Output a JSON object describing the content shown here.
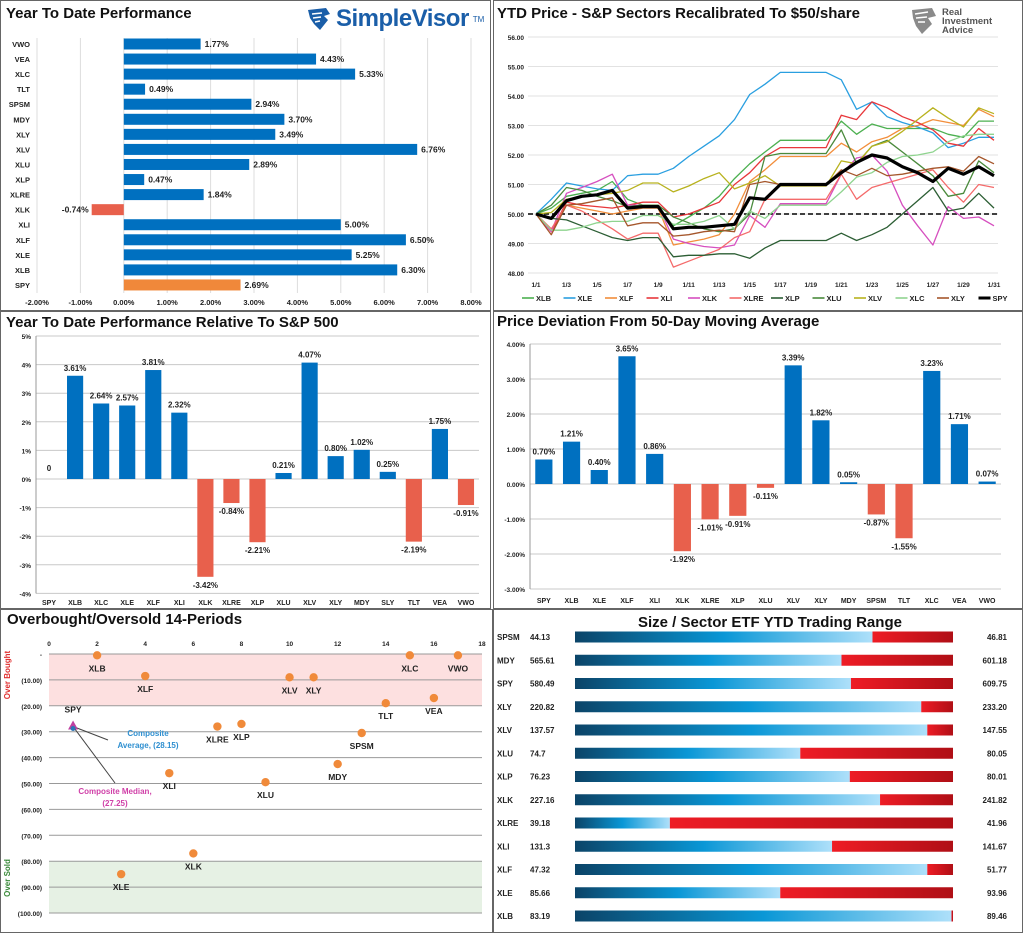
{
  "colors": {
    "positive": "#0070c0",
    "negative": "#e8604c",
    "benchmark": "#f0883a",
    "dot": "#f08a3a",
    "overbought_band": "#fde0e0",
    "oversold_band": "#e6f1e4"
  },
  "logos": {
    "simplevisor": "SimpleVisor",
    "simplevisor_tm": "TM",
    "ria": [
      "Real",
      "Investment",
      "Advice"
    ]
  },
  "chart_data": [
    {
      "id": "ytd",
      "type": "bar",
      "orientation": "horizontal",
      "title": "Year To Date Performance",
      "categories": [
        "VWO",
        "VEA",
        "XLC",
        "TLT",
        "SPSM",
        "MDY",
        "XLY",
        "XLV",
        "XLU",
        "XLP",
        "XLRE",
        "XLK",
        "XLI",
        "XLF",
        "XLE",
        "XLB",
        "SPY"
      ],
      "values": [
        1.77,
        4.43,
        5.33,
        0.49,
        2.94,
        3.7,
        3.49,
        6.76,
        2.89,
        0.47,
        1.84,
        -0.74,
        5.0,
        6.5,
        5.25,
        6.3,
        2.69
      ],
      "highlight": "SPY",
      "xlim": [
        -2,
        8
      ],
      "xticks": [
        "-2.00%",
        "-1.00%",
        "0.00%",
        "1.00%",
        "2.00%",
        "3.00%",
        "4.00%",
        "5.00%",
        "6.00%",
        "7.00%",
        "8.00%"
      ],
      "grid": "vertical"
    },
    {
      "id": "recal",
      "type": "line",
      "title": "YTD Price - S&P Sectors Recalibrated To $50/share",
      "x": [
        "1/1",
        "1/2",
        "1/3",
        "1/4",
        "1/5",
        "1/6",
        "1/7",
        "1/8",
        "1/9",
        "1/10",
        "1/11",
        "1/12",
        "1/13",
        "1/14",
        "1/15",
        "1/16",
        "1/17",
        "1/18",
        "1/19",
        "1/20",
        "1/21",
        "1/22",
        "1/23",
        "1/24",
        "1/25",
        "1/26",
        "1/27",
        "1/28",
        "1/29",
        "1/30",
        "1/31"
      ],
      "xticks": [
        "1/1",
        "1/3",
        "1/5",
        "1/7",
        "1/9",
        "1/11",
        "1/13",
        "1/15",
        "1/17",
        "1/19",
        "1/21",
        "1/23",
        "1/25",
        "1/27",
        "1/29",
        "1/31"
      ],
      "ylim": [
        48,
        56
      ],
      "yticks": [
        "48.00",
        "49.00",
        "50.00",
        "51.00",
        "52.00",
        "53.00",
        "54.00",
        "55.00",
        "56.00"
      ],
      "reference_line": 50,
      "legend": "bottom",
      "series": [
        {
          "name": "XLB",
          "color": "#4cb050",
          "values": [
            50,
            50.2,
            50.6,
            50.7,
            50.8,
            51.1,
            50.5,
            50.3,
            50.2,
            49.6,
            49.9,
            50.2,
            50.6,
            51.2,
            51.7,
            52.1,
            52.5,
            52.5,
            52.5,
            52.5,
            53.15,
            52.7,
            53.05,
            52.9,
            52.9,
            52.9,
            52.9,
            52.7,
            52.6,
            53.15,
            53.15
          ]
        },
        {
          "name": "XLE",
          "color": "#2a9fe0",
          "values": [
            50,
            50.5,
            51.05,
            50.95,
            50.85,
            50.8,
            51.3,
            51.35,
            51.35,
            51.55,
            51.95,
            52.3,
            52.65,
            53.2,
            54.05,
            54.4,
            54.8,
            54.8,
            54.8,
            54.8,
            54.55,
            53.55,
            53.8,
            53.3,
            53.1,
            52.95,
            52.75,
            52.25,
            52.4,
            52.6,
            52.6
          ]
        },
        {
          "name": "XLF",
          "color": "#f28e3b",
          "values": [
            50,
            49.4,
            50.3,
            50.2,
            50.1,
            50.0,
            50.1,
            50.2,
            50.2,
            48.95,
            49.05,
            49.15,
            49.3,
            50.0,
            51.1,
            51.5,
            51.95,
            51.95,
            51.95,
            51.95,
            52.4,
            52.1,
            52.45,
            52.6,
            52.9,
            53.0,
            53.2,
            53.1,
            53.0,
            53.55,
            53.3
          ]
        },
        {
          "name": "XLI",
          "color": "#e8373b",
          "values": [
            50,
            49.4,
            50.4,
            50.3,
            50.25,
            50.2,
            50.3,
            50.4,
            50.4,
            49.9,
            50.0,
            50.2,
            50.4,
            51.0,
            51.4,
            51.95,
            52.25,
            52.25,
            52.25,
            52.25,
            53.35,
            53.2,
            53.8,
            53.6,
            53.3,
            53.1,
            52.85,
            52.4,
            52.3,
            52.9,
            52.5
          ]
        },
        {
          "name": "XLK",
          "color": "#d64fbf",
          "values": [
            50,
            49.4,
            50.7,
            50.9,
            51.1,
            51.35,
            50.3,
            50.3,
            50.3,
            49.15,
            49.0,
            48.9,
            48.85,
            48.95,
            49.95,
            49.55,
            50.35,
            50.35,
            50.35,
            50.35,
            51.35,
            51.9,
            52.0,
            51.45,
            50.3,
            49.6,
            48.95,
            50.25,
            49.85,
            49.9,
            49.6
          ]
        },
        {
          "name": "XLRE",
          "color": "#f46b6b",
          "values": [
            50,
            49.5,
            50.3,
            50.1,
            49.8,
            49.5,
            49.15,
            49.35,
            49.35,
            48.2,
            48.4,
            48.6,
            48.8,
            49.2,
            49.4,
            50.5,
            50.5,
            50.5,
            50.5,
            50.5,
            51.35,
            50.5,
            50.9,
            51.05,
            51.2,
            51.35,
            51.5,
            50.9,
            50.4,
            51.0,
            50.9
          ]
        },
        {
          "name": "XLP",
          "color": "#2c5e34",
          "values": [
            50,
            49.85,
            49.8,
            49.6,
            49.4,
            49.2,
            49.1,
            49.2,
            49.2,
            48.55,
            48.6,
            48.6,
            48.65,
            48.65,
            48.5,
            48.85,
            49.1,
            49.1,
            49.1,
            49.1,
            49.35,
            49.1,
            49.3,
            49.55,
            50.0,
            50.45,
            50.9,
            50.1,
            50.2,
            50.7,
            50.2
          ]
        },
        {
          "name": "XLU",
          "color": "#4a8a3c",
          "values": [
            50,
            50.3,
            50.9,
            50.8,
            50.6,
            50.45,
            50.25,
            50.3,
            50.3,
            49.9,
            49.7,
            49.5,
            49.4,
            49.5,
            50.0,
            51.95,
            52.05,
            52.05,
            52.05,
            52.05,
            52.85,
            51.7,
            52.3,
            52.5,
            52.1,
            51.7,
            51.3,
            50.6,
            50.7,
            51.8,
            51.4
          ]
        },
        {
          "name": "XLV",
          "color": "#b8b21e",
          "values": [
            50,
            50.05,
            50.5,
            50.6,
            50.65,
            50.7,
            50.8,
            51.05,
            51.05,
            50.75,
            50.95,
            51.2,
            51.4,
            50.85,
            51.05,
            51.3,
            50.95,
            50.95,
            50.95,
            50.95,
            51.8,
            51.7,
            52.3,
            52.45,
            52.8,
            53.2,
            53.6,
            53.25,
            52.95,
            53.6,
            53.4
          ]
        },
        {
          "name": "XLC",
          "color": "#8fd48f",
          "values": [
            50,
            49.45,
            49.45,
            49.55,
            49.7,
            49.75,
            49.75,
            49.95,
            49.95,
            49.65,
            49.65,
            49.75,
            49.95,
            49.5,
            50.1,
            49.85,
            50.3,
            50.3,
            50.3,
            50.3,
            50.75,
            51.25,
            51.4,
            51.75,
            51.95,
            52.0,
            52.1,
            52.45,
            52.65,
            52.7,
            52.7
          ]
        },
        {
          "name": "XLY",
          "color": "#a5562b",
          "values": [
            50,
            49.3,
            50.3,
            50.35,
            50.45,
            50.55,
            49.6,
            49.7,
            49.7,
            49.25,
            49.3,
            49.4,
            49.45,
            49.4,
            51.0,
            51.1,
            51.0,
            51.0,
            51.0,
            51.0,
            51.5,
            51.3,
            51.55,
            51.3,
            51.35,
            51.45,
            51.55,
            51.6,
            51.45,
            51.95,
            51.7
          ]
        },
        {
          "name": "SPY",
          "color": "#000000",
          "values": [
            50,
            49.85,
            50.45,
            50.6,
            50.65,
            50.8,
            50.2,
            50.25,
            50.25,
            49.5,
            49.55,
            49.55,
            49.6,
            49.65,
            50.55,
            50.5,
            51.0,
            51.0,
            51.0,
            51.0,
            51.4,
            51.75,
            52.0,
            51.9,
            51.6,
            51.4,
            51.1,
            51.55,
            51.35,
            51.6,
            51.3
          ]
        }
      ]
    },
    {
      "id": "relative",
      "type": "bar",
      "title": "Year To Date Performance Relative To S&P 500",
      "categories": [
        "SPY",
        "XLB",
        "XLC",
        "XLE",
        "XLF",
        "XLI",
        "XLK",
        "XLRE",
        "XLP",
        "XLU",
        "XLV",
        "XLY",
        "MDY",
        "SLY",
        "TLT",
        "VEA",
        "VWO"
      ],
      "values": [
        0,
        3.61,
        2.64,
        2.57,
        3.81,
        2.32,
        -3.42,
        -0.84,
        -2.21,
        0.21,
        4.07,
        0.8,
        1.02,
        0.25,
        -2.19,
        1.75,
        -0.91
      ],
      "labels": [
        "0",
        "3.61%",
        "2.64%",
        "2.57%",
        "3.81%",
        "2.32%",
        "-3.42%",
        "-0.84%",
        "-2.21%",
        "0.21%",
        "4.07%",
        "0.80%",
        "1.02%",
        "0.25%",
        "-2.19%",
        "1.75%",
        "-0.91%"
      ],
      "ylim": [
        -4,
        5
      ],
      "yticks": [
        "-4%",
        "-3%",
        "-2%",
        "-1%",
        "0%",
        "1%",
        "2%",
        "3%",
        "4%",
        "5%"
      ],
      "grid": "horizontal"
    },
    {
      "id": "deviation",
      "type": "bar",
      "title": "Price Deviation From 50-Day Moving Average",
      "categories": [
        "SPY",
        "XLB",
        "XLE",
        "XLF",
        "XLI",
        "XLK",
        "XLRE",
        "XLP",
        "XLU",
        "XLV",
        "XLY",
        "MDY",
        "SPSM",
        "TLT",
        "XLC",
        "VEA",
        "VWO"
      ],
      "values": [
        0.7,
        1.21,
        0.4,
        3.65,
        0.86,
        -1.92,
        -1.01,
        -0.91,
        -0.11,
        3.39,
        1.82,
        0.05,
        -0.87,
        -1.55,
        3.23,
        1.71,
        0.07
      ],
      "ylim": [
        -3,
        4
      ],
      "yticks": [
        "-3.00%",
        "-2.00%",
        "-1.00%",
        "0.00%",
        "1.00%",
        "2.00%",
        "3.00%",
        "4.00%"
      ],
      "grid": "horizontal"
    },
    {
      "id": "obos",
      "type": "scatter",
      "title": "Overbought/Oversold 14-Periods",
      "xlim": [
        0,
        18
      ],
      "xticks": [
        "0",
        "2",
        "4",
        "6",
        "8",
        "10",
        "12",
        "14",
        "16",
        "18"
      ],
      "ylim": [
        -100,
        0
      ],
      "yticks": [
        "-",
        "(10.00)",
        "(20.00)",
        "(30.00)",
        "(40.00)",
        "(50.00)",
        "(60.00)",
        "(70.00)",
        "(80.00)",
        "(90.00)",
        "(100.00)"
      ],
      "zones": {
        "overbought_label": "Over Bought",
        "overbought_range": [
          -20,
          0
        ],
        "oversold_label": "Over Sold",
        "oversold_range": [
          -100,
          -80
        ]
      },
      "points": [
        {
          "label": "XLB",
          "x": 2,
          "y": -0.5
        },
        {
          "label": "XLF",
          "x": 4,
          "y": -8.5
        },
        {
          "label": "XLV",
          "x": 10,
          "y": -9
        },
        {
          "label": "XLY",
          "x": 11,
          "y": -9
        },
        {
          "label": "XLC",
          "x": 15,
          "y": -0.5
        },
        {
          "label": "VWO",
          "x": 17,
          "y": -0.5
        },
        {
          "label": "TLT",
          "x": 14,
          "y": -19
        },
        {
          "label": "VEA",
          "x": 16,
          "y": -17
        },
        {
          "label": "XLRE",
          "x": 7,
          "y": -28
        },
        {
          "label": "XLP",
          "x": 8,
          "y": -27
        },
        {
          "label": "SPSM",
          "x": 13,
          "y": -30.5
        },
        {
          "label": "MDY",
          "x": 12,
          "y": -42.5
        },
        {
          "label": "XLI",
          "x": 5,
          "y": -46
        },
        {
          "label": "XLU",
          "x": 9,
          "y": -49.5
        },
        {
          "label": "XLK",
          "x": 6,
          "y": -77
        },
        {
          "label": "XLE",
          "x": 3,
          "y": -85
        }
      ],
      "benchmark": {
        "label": "SPY",
        "x": 1,
        "y": -28
      },
      "annotations": {
        "average_label": "Composite",
        "average_value": "Average,  (28.15)",
        "median_label": "Composite Median,",
        "median_value": "(27.25)"
      }
    },
    {
      "id": "range",
      "type": "bar",
      "subtype": "range",
      "title": "Size / Sector ETF YTD Trading Range",
      "rows": [
        {
          "ticker": "SPSM",
          "low": "44.13",
          "high": "46.81",
          "position": 0.787
        },
        {
          "ticker": "MDY",
          "low": "565.61",
          "high": "601.18",
          "position": 0.705
        },
        {
          "ticker": "SPY",
          "low": "580.49",
          "high": "609.75",
          "position": 0.73
        },
        {
          "ticker": "XLY",
          "low": "220.82",
          "high": "233.20",
          "position": 0.916
        },
        {
          "ticker": "XLV",
          "low": "137.57",
          "high": "147.55",
          "position": 0.932
        },
        {
          "ticker": "XLU",
          "low": "74.7",
          "high": "80.05",
          "position": 0.596
        },
        {
          "ticker": "XLP",
          "low": "76.23",
          "high": "80.01",
          "position": 0.727
        },
        {
          "ticker": "XLK",
          "low": "227.16",
          "high": "241.82",
          "position": 0.807
        },
        {
          "ticker": "XLRE",
          "low": "39.18",
          "high": "41.96",
          "position": 0.251
        },
        {
          "ticker": "XLI",
          "low": "131.3",
          "high": "141.67",
          "position": 0.68
        },
        {
          "ticker": "XLF",
          "low": "47.32",
          "high": "51.77",
          "position": 0.932
        },
        {
          "ticker": "XLE",
          "low": "85.66",
          "high": "93.96",
          "position": 0.543
        },
        {
          "ticker": "XLB",
          "low": "83.19",
          "high": "89.46",
          "position": 0.996
        }
      ]
    }
  ]
}
